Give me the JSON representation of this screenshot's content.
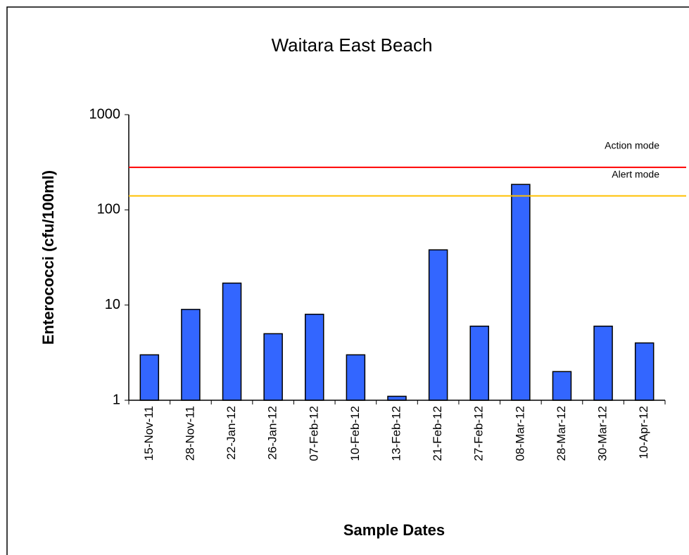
{
  "chart_data": {
    "type": "bar",
    "title": "Waitara East Beach",
    "x_label": "Sample Dates",
    "y_label": "Enterococci (cfu/100ml)",
    "categories": [
      "15-Nov-11",
      "28-Nov-11",
      "22-Jan-12",
      "26-Jan-12",
      "07-Feb-12",
      "10-Feb-12",
      "13-Feb-12",
      "21-Feb-12",
      "27-Feb-12",
      "08-Mar-12",
      "28-Mar-12",
      "30-Mar-12",
      "10-Apr-12"
    ],
    "values": [
      3,
      9,
      17,
      5,
      8,
      3,
      1.1,
      38,
      6,
      185,
      2,
      6,
      4
    ],
    "color": "#3366ff",
    "log_scale": true,
    "ylim": [
      1,
      1000
    ],
    "yticks": [
      1,
      10,
      100,
      1000
    ],
    "reference_lines": [
      {
        "label": "Action mode",
        "value": 280,
        "color": "#ff0000"
      },
      {
        "label": "Alert mode",
        "value": 140,
        "color": "#ffc000"
      }
    ]
  }
}
